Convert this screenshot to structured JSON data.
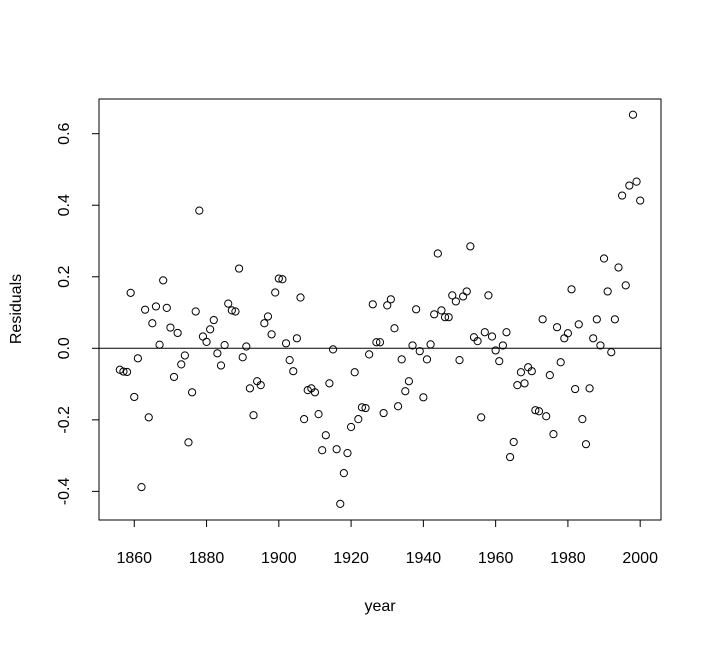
{
  "chart_data": {
    "type": "scatter",
    "xlabel": "year",
    "ylabel": "Residuals",
    "x": [
      1856,
      1857,
      1858,
      1859,
      1860,
      1861,
      1862,
      1863,
      1864,
      1865,
      1866,
      1867,
      1868,
      1869,
      1870,
      1871,
      1872,
      1873,
      1874,
      1875,
      1876,
      1877,
      1878,
      1879,
      1880,
      1881,
      1882,
      1883,
      1884,
      1885,
      1886,
      1887,
      1888,
      1889,
      1890,
      1891,
      1892,
      1893,
      1894,
      1895,
      1896,
      1897,
      1898,
      1899,
      1900,
      1901,
      1902,
      1903,
      1904,
      1905,
      1906,
      1907,
      1908,
      1909,
      1910,
      1911,
      1912,
      1913,
      1914,
      1915,
      1916,
      1917,
      1918,
      1919,
      1920,
      1921,
      1922,
      1923,
      1924,
      1925,
      1926,
      1927,
      1928,
      1929,
      1930,
      1931,
      1932,
      1933,
      1934,
      1935,
      1936,
      1937,
      1938,
      1939,
      1940,
      1941,
      1942,
      1943,
      1944,
      1945,
      1946,
      1947,
      1948,
      1949,
      1950,
      1951,
      1952,
      1953,
      1954,
      1955,
      1956,
      1957,
      1958,
      1959,
      1960,
      1961,
      1962,
      1963,
      1964,
      1965,
      1966,
      1967,
      1968,
      1969,
      1970,
      1971,
      1972,
      1973,
      1974,
      1975,
      1976,
      1977,
      1978,
      1979,
      1980,
      1981,
      1982,
      1983,
      1984,
      1985,
      1986,
      1987,
      1988,
      1989,
      1990,
      1991,
      1992,
      1993,
      1994,
      1995,
      1996,
      1997,
      1998,
      1999,
      2000
    ],
    "values": [
      -0.06,
      -0.065,
      -0.066,
      0.155,
      -0.136,
      -0.028,
      -0.388,
      0.108,
      -0.193,
      0.07,
      0.117,
      0.01,
      0.19,
      0.113,
      0.058,
      -0.08,
      0.043,
      -0.045,
      -0.02,
      -0.263,
      -0.123,
      0.103,
      0.385,
      0.033,
      0.018,
      0.053,
      0.079,
      -0.014,
      -0.048,
      0.009,
      0.125,
      0.106,
      0.103,
      0.223,
      -0.025,
      0.005,
      -0.112,
      -0.187,
      -0.092,
      -0.103,
      0.07,
      0.089,
      0.039,
      0.156,
      0.195,
      0.193,
      0.014,
      -0.033,
      -0.064,
      0.028,
      0.142,
      -0.198,
      -0.117,
      -0.112,
      -0.123,
      -0.184,
      -0.285,
      -0.243,
      -0.098,
      -0.003,
      -0.282,
      -0.435,
      -0.349,
      -0.293,
      -0.22,
      -0.067,
      -0.198,
      -0.165,
      -0.167,
      -0.017,
      0.123,
      0.017,
      0.017,
      -0.181,
      0.12,
      0.137,
      0.056,
      -0.162,
      -0.031,
      -0.12,
      -0.092,
      0.008,
      0.109,
      -0.008,
      -0.137,
      -0.031,
      0.011,
      0.095,
      0.265,
      0.106,
      0.087,
      0.087,
      0.148,
      0.131,
      -0.033,
      0.145,
      0.159,
      0.285,
      0.031,
      0.02,
      -0.193,
      0.045,
      0.148,
      0.033,
      -0.006,
      -0.036,
      0.008,
      0.045,
      -0.304,
      -0.262,
      -0.103,
      -0.067,
      -0.098,
      -0.053,
      -0.064,
      -0.173,
      -0.176,
      0.081,
      -0.19,
      -0.075,
      -0.24,
      0.059,
      -0.039,
      0.028,
      0.042,
      0.165,
      -0.114,
      0.067,
      -0.198,
      -0.268,
      -0.112,
      0.028,
      0.081,
      0.008,
      0.251,
      0.159,
      -0.011,
      0.081,
      0.226,
      0.427,
      0.176,
      0.455,
      0.653,
      0.466,
      0.413
    ],
    "color": "#000000",
    "xlim": [
      1850.24,
      2005.76
    ],
    "xticks": [
      1860,
      1880,
      1900,
      1920,
      1940,
      1960,
      1980,
      2000
    ],
    "ylim": [
      -0.48,
      0.697
    ],
    "yticks": [
      -0.4,
      -0.2,
      {
        "value": 0,
        "label": "0.0"
      },
      0.2,
      0.4,
      0.6
    ],
    "hline": 0
  }
}
